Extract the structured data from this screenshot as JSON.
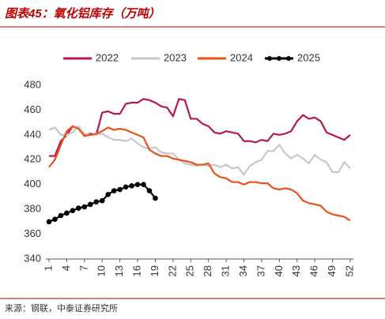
{
  "chart_data": {
    "type": "line",
    "title": "图表45：氧化铝库存（万吨）",
    "source": "来源：钢联，中泰证券研究所",
    "x": [
      1,
      2,
      3,
      4,
      5,
      6,
      7,
      8,
      9,
      10,
      11,
      12,
      13,
      14,
      15,
      16,
      17,
      18,
      19,
      20,
      21,
      22,
      23,
      24,
      25,
      26,
      27,
      28,
      29,
      30,
      31,
      32,
      33,
      34,
      35,
      36,
      37,
      38,
      39,
      40,
      41,
      42,
      43,
      44,
      45,
      46,
      47,
      48,
      49,
      50,
      51,
      52
    ],
    "xlim": [
      1,
      52
    ],
    "xticks": [
      1,
      4,
      7,
      10,
      13,
      16,
      19,
      22,
      25,
      28,
      31,
      34,
      37,
      40,
      43,
      46,
      49,
      52
    ],
    "ylim": [
      340,
      480
    ],
    "yticks": [
      340,
      360,
      380,
      400,
      420,
      440,
      460,
      480
    ],
    "legend": "top",
    "series": [
      {
        "name": "2022",
        "color": "#b8164e",
        "markers": false,
        "values": [
          423,
          423,
          435,
          440,
          447,
          445,
          440,
          441,
          440,
          458,
          459,
          457,
          457,
          465,
          466,
          466,
          469,
          468,
          466,
          463,
          462,
          455,
          469,
          468,
          453,
          453,
          449,
          447,
          442,
          441,
          443,
          442,
          441,
          435,
          435,
          434,
          436,
          435,
          441,
          440,
          441,
          443,
          451,
          456,
          453,
          454,
          451,
          442,
          440,
          438,
          436,
          440
        ]
      },
      {
        "name": "2023",
        "color": "#c8c8c8",
        "markers": false,
        "values": [
          444,
          446,
          440,
          440,
          442,
          447,
          441,
          440,
          440,
          441,
          438,
          436,
          436,
          435,
          437,
          433,
          430,
          429,
          430,
          426,
          425,
          425,
          420,
          417,
          416,
          415,
          416,
          415,
          416,
          414,
          416,
          413,
          414,
          408,
          415,
          418,
          420,
          427,
          427,
          432,
          425,
          421,
          424,
          421,
          417,
          424,
          420,
          418,
          410,
          410,
          418,
          413
        ]
      },
      {
        "name": "2024",
        "color": "#e8521c",
        "markers": false,
        "values": [
          414,
          420,
          432,
          443,
          447,
          445,
          439,
          440,
          441,
          443,
          446,
          444,
          445,
          444,
          442,
          440,
          438,
          428,
          425,
          423,
          423,
          421,
          420,
          419,
          418,
          416,
          416,
          417,
          409,
          406,
          405,
          402,
          402,
          400,
          402,
          402,
          401,
          401,
          397,
          396,
          397,
          396,
          393,
          387,
          385,
          384,
          383,
          378,
          376,
          375,
          374,
          371
        ]
      },
      {
        "name": "2025",
        "color": "#000000",
        "markers": true,
        "values": [
          370,
          372,
          375,
          377,
          379,
          381,
          382,
          384,
          386,
          387,
          392,
          395,
          396,
          398,
          399,
          400,
          400,
          395,
          389,
          null,
          null,
          null,
          null,
          null,
          null,
          null,
          null,
          null,
          null,
          null,
          null,
          null,
          null,
          null,
          null,
          null,
          null,
          null,
          null,
          null,
          null,
          null,
          null,
          null,
          null,
          null,
          null,
          null,
          null,
          null,
          null,
          null
        ]
      }
    ]
  }
}
